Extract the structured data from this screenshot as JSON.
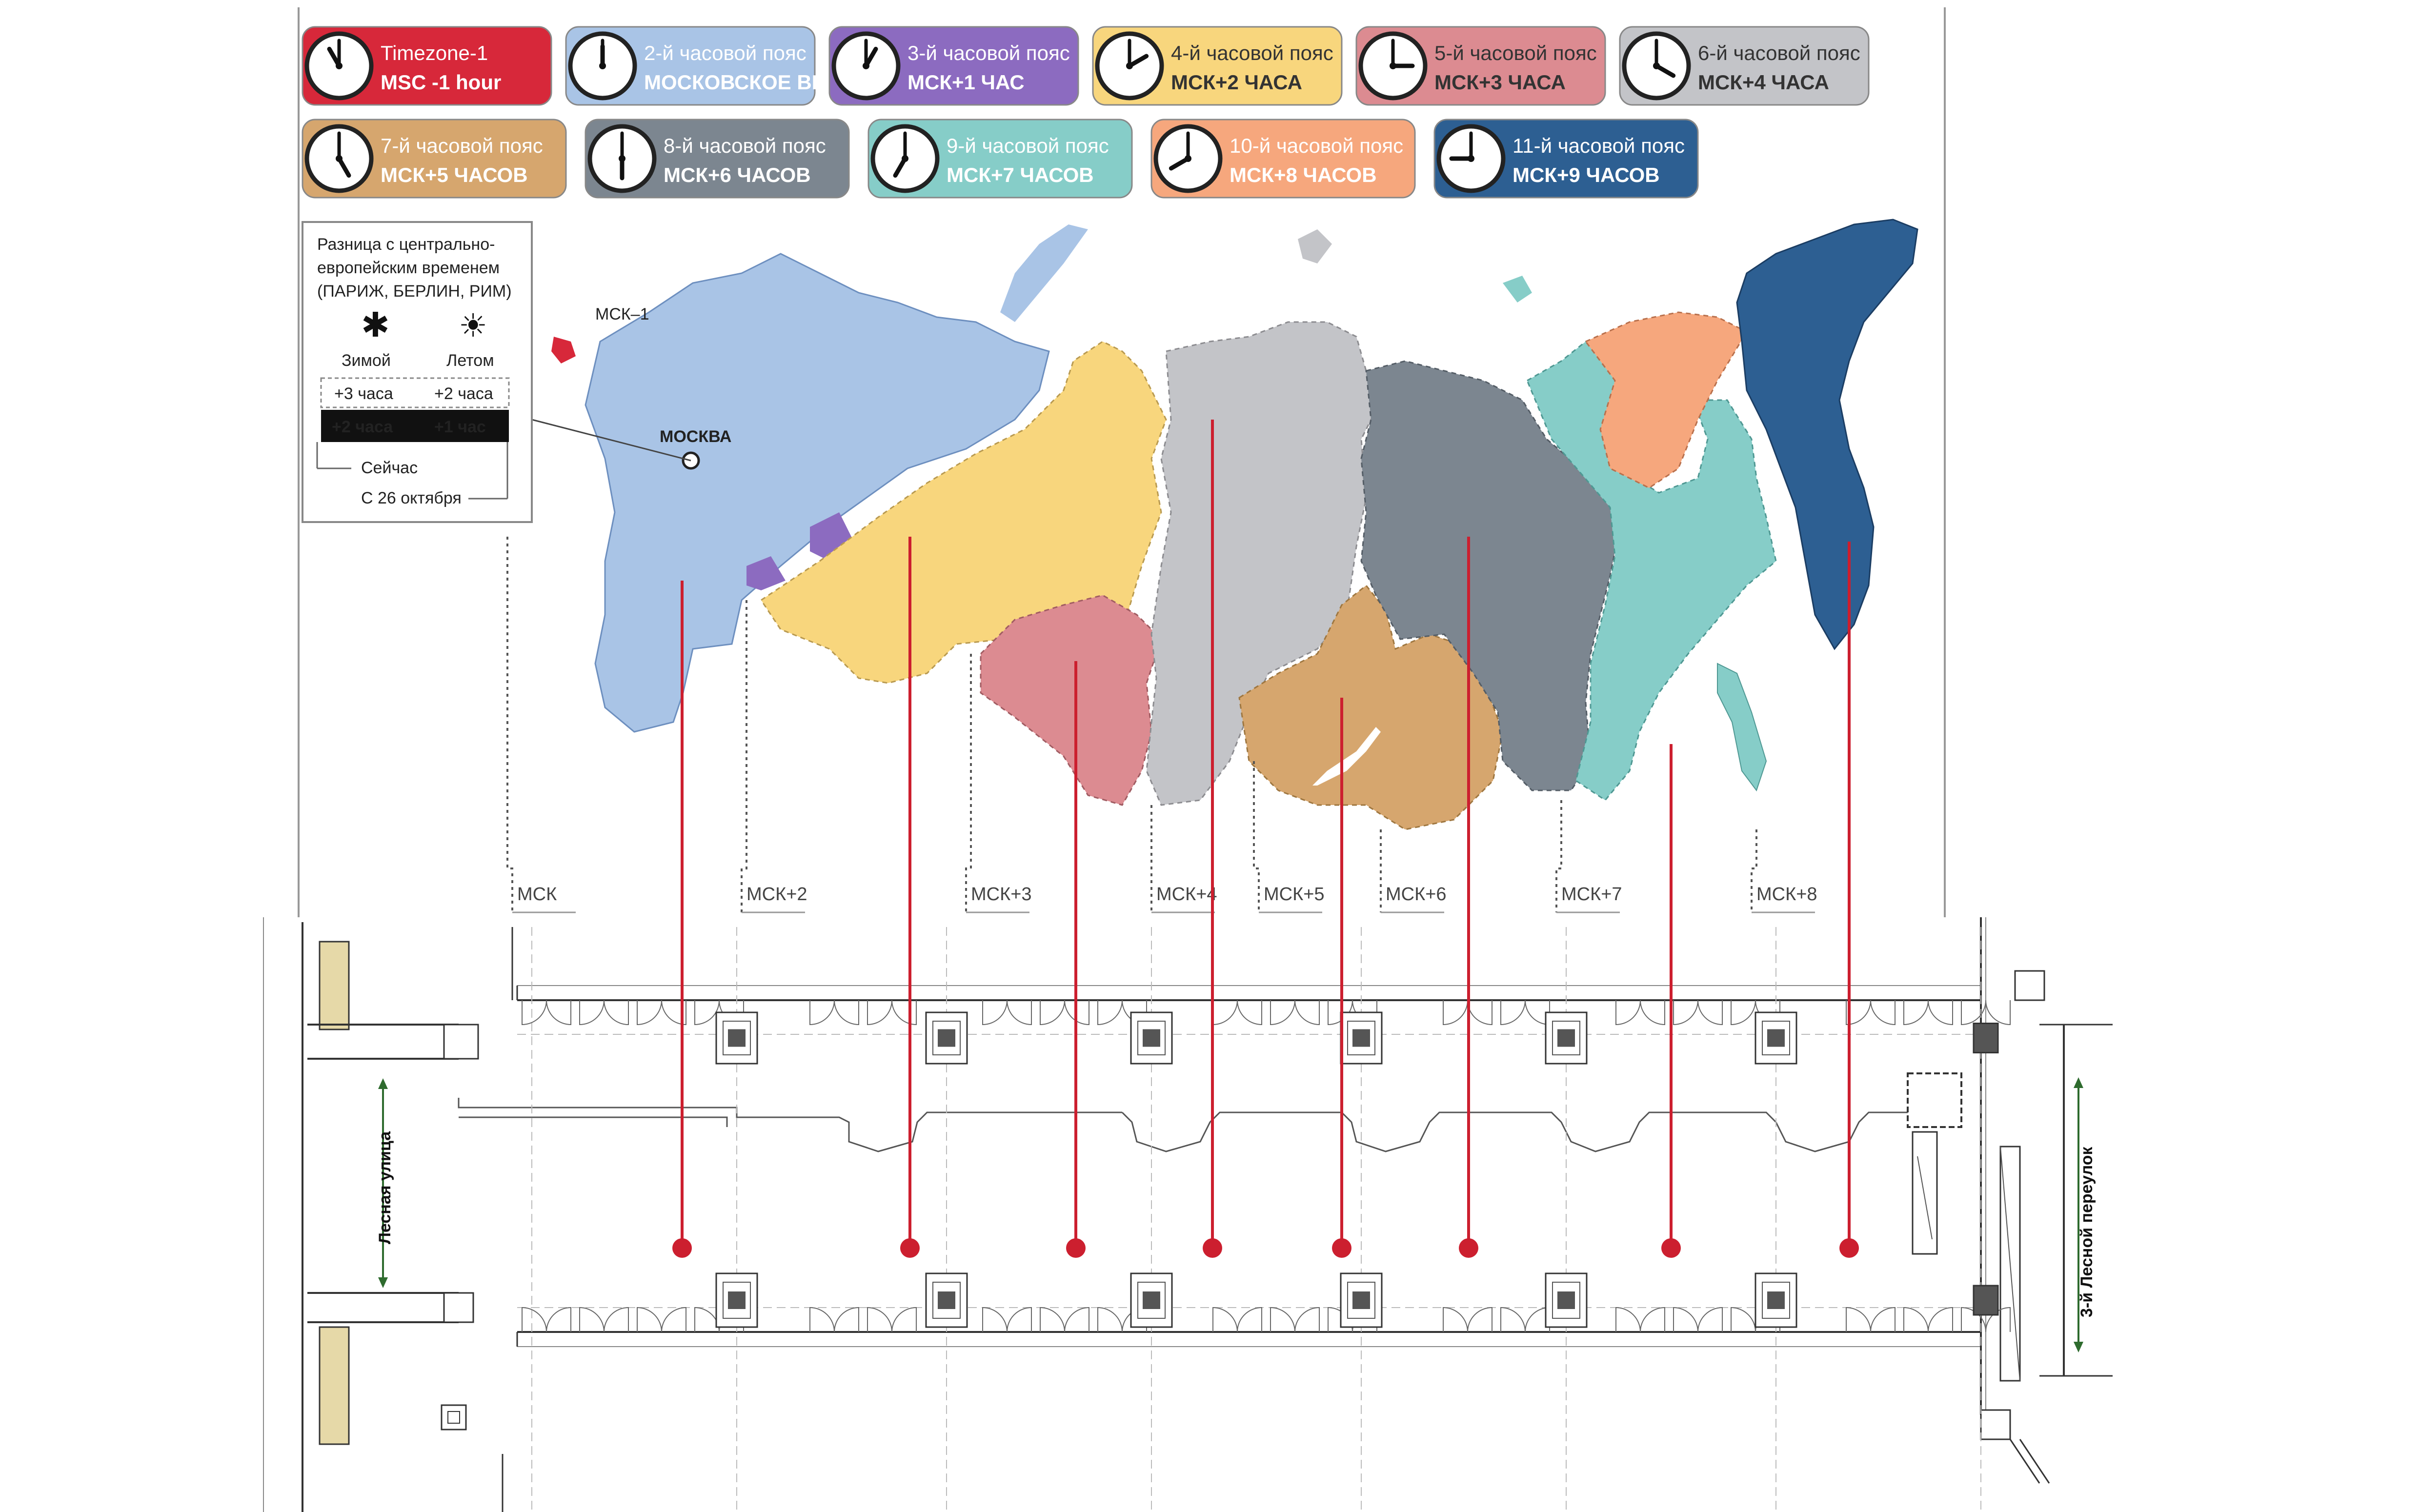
{
  "legend": [
    {
      "line1": "Timezone-1",
      "line2": "MSC -1 hour",
      "color": "#d7283a",
      "text": "#ffffff",
      "angle": -30,
      "hour": 5
    },
    {
      "line1": "2-й часовой пояс",
      "line2": "МОСКОВСКОЕ ВРЕМЯ",
      "color": "#a9c4e6",
      "text": "#ffffff",
      "angle": 0,
      "hour": 6
    },
    {
      "line1": "3-й часовой пояс",
      "line2": "МСК+1 ЧАС",
      "color": "#8c6bc0",
      "text": "#ffffff",
      "angle": 30,
      "hour": 6
    },
    {
      "line1": "4-й часовой пояс",
      "line2": "МСК+2 ЧАСА",
      "color": "#f8d67d",
      "text": "#333333",
      "angle": 60,
      "hour": 6
    },
    {
      "line1": "5-й часовой пояс",
      "line2": "МСК+3 ЧАСА",
      "color": "#dc8b91",
      "text": "#333333",
      "angle": 90,
      "hour": 6
    },
    {
      "line1": "6-й часовой пояс",
      "line2": "МСК+4 ЧАСА",
      "color": "#c3c4c8",
      "text": "#333333",
      "angle": 120,
      "hour": 6
    },
    {
      "line1": "7-й часовой пояс",
      "line2": "МСК+5 ЧАСОВ",
      "color": "#d6a66e",
      "text": "#ffffff",
      "angle": 150,
      "hour": 6
    },
    {
      "line1": "8-й часовой пояс",
      "line2": "МСК+6 ЧАСОВ",
      "color": "#7c8690",
      "text": "#ffffff",
      "angle": 180,
      "hour": 6
    },
    {
      "line1": "9-й часовой пояс",
      "line2": "МСК+7 ЧАСОВ",
      "color": "#86cdc8",
      "text": "#ffffff",
      "angle": 210,
      "hour": 6
    },
    {
      "line1": "10-й часовой пояс",
      "line2": "МСК+8 ЧАСОВ",
      "color": "#f6a77d",
      "text": "#ffffff",
      "angle": 240,
      "hour": 6
    },
    {
      "line1": "11-й часовой пояс",
      "line2": "МСК+9 ЧАСОВ",
      "color": "#2d5f92",
      "text": "#ffffff",
      "angle": 270,
      "hour": 6
    }
  ],
  "info_box": {
    "heading_1": "Разница с центрально-",
    "heading_2": "европейским временем",
    "heading_3": "(ПАРИЖ, БЕРЛИН, РИМ)",
    "winter": "Зимой",
    "summer": "Летом",
    "from_winter": "+3 часа",
    "from_summer": "+2 часа",
    "now_winter": "+2 часа",
    "now_summer": "+1 час",
    "now_label": "Сейчас",
    "from_label": "С 26 октября"
  },
  "map_labels": {
    "moscow": "МОСКВА",
    "kaliningrad": "МСК–1"
  },
  "zone_tags": [
    "МСК",
    "МСК+2",
    "МСК+3",
    "МСК+4",
    "МСК+5",
    "МСК+6",
    "МСК+7",
    "МСК+8"
  ],
  "streets": {
    "left": "Лесная улица",
    "right": "3-й Лесной переулок"
  },
  "colors": {
    "connector": "#cc1f2f",
    "plan_line": "#333333",
    "grid": "#bbbbbb"
  }
}
